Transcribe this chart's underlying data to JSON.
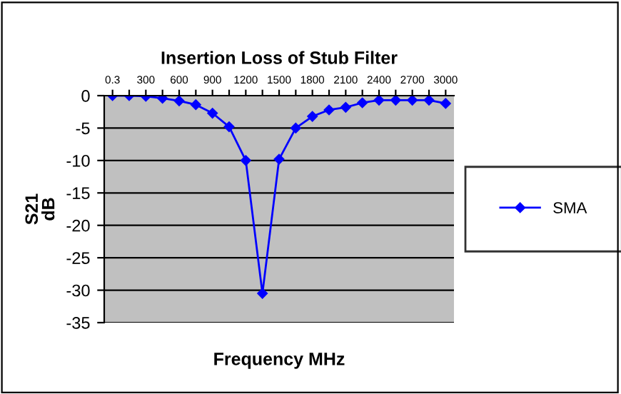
{
  "chart_data": {
    "type": "line",
    "title": "Insertion Loss of Stub Filter",
    "xlabel": "Frequency MHz",
    "ylabel": "S21\ndB",
    "categories": [
      "0.3",
      null,
      "300",
      null,
      "600",
      null,
      "900",
      null,
      "1200",
      null,
      "1500",
      null,
      "1800",
      null,
      "2100",
      null,
      "2400",
      null,
      "2700",
      null,
      "3000"
    ],
    "series": [
      {
        "name": "SMA",
        "color": "#0000ff",
        "values": [
          0,
          0,
          -0.1,
          -0.4,
          -0.8,
          -1.4,
          -2.7,
          -4.8,
          -10,
          -30.5,
          -9.8,
          -5,
          -3.2,
          -2.2,
          -1.8,
          -1.1,
          -0.7,
          -0.7,
          -0.7,
          -0.7,
          -1.2
        ]
      }
    ],
    "ylim": [
      -35,
      0
    ],
    "yticks": [
      -35,
      -30,
      -25,
      -20,
      -15,
      -10,
      -5,
      0
    ],
    "grid": "y",
    "legend": "right",
    "marker": "diamond",
    "line_style": "solid"
  }
}
